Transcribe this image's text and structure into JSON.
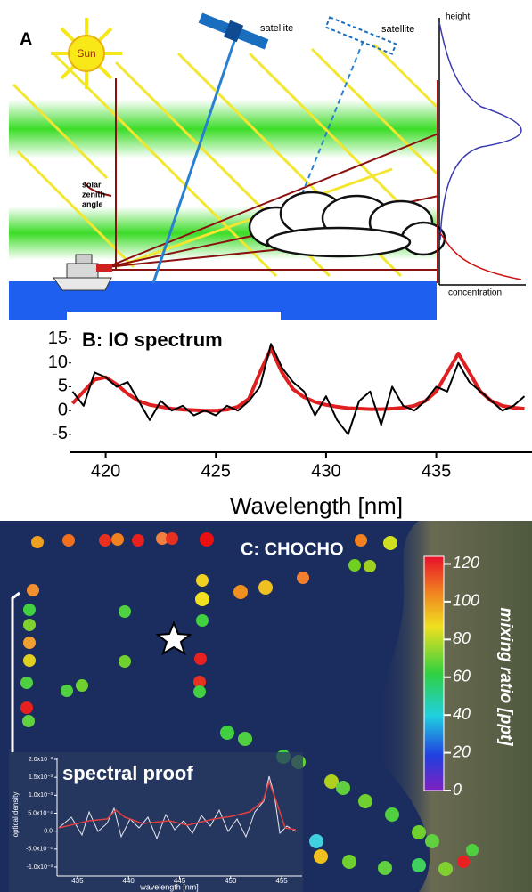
{
  "panel_a": {
    "label": "A",
    "sun": "Sun",
    "satellite_1": "satellite",
    "satellite_2": "satellite",
    "height": "height",
    "solar_zenith_angle": [
      "solar",
      "zenith",
      "angle"
    ],
    "concentration": "concentration"
  },
  "chart_data": {
    "type": "line",
    "title": "B: IO spectrum",
    "x_label": "Wavelength [nm]",
    "x": [
      418.5,
      419,
      419.5,
      420,
      420.5,
      421,
      421.5,
      422,
      422.5,
      423,
      423.5,
      424,
      424.5,
      425,
      425.5,
      426,
      426.5,
      427,
      427.5,
      428,
      428.5,
      429,
      429.5,
      430,
      430.5,
      431,
      431.5,
      432,
      432.5,
      433,
      433.5,
      434,
      434.5,
      435,
      435.5,
      436,
      436.5,
      437,
      437.5,
      438,
      438.5,
      439
    ],
    "series": [
      {
        "color": "#e02020",
        "values": [
          1.5,
          4,
          6.5,
          7,
          5.5,
          3.5,
          2,
          1.2,
          0.8,
          0.4,
          0.2,
          0.1,
          0,
          0,
          0.2,
          0.8,
          2.5,
          8,
          13,
          8,
          4.5,
          2.8,
          1.8,
          1.2,
          0.8,
          0.5,
          0.4,
          0.3,
          0.3,
          0.4,
          0.6,
          1,
          2,
          4,
          8,
          12,
          8,
          4,
          2,
          1,
          0.6,
          0.4
        ]
      },
      {
        "color": "#000000",
        "values": [
          4,
          1,
          8,
          7,
          5,
          6,
          2,
          -2,
          2,
          0,
          1,
          -1,
          0,
          -1,
          1,
          0,
          2,
          5,
          14,
          9,
          6,
          4,
          -1,
          3,
          -2,
          -5,
          2,
          4,
          -3,
          5,
          1,
          0,
          2,
          5,
          4,
          10,
          6,
          4,
          2,
          0,
          1,
          3
        ]
      }
    ],
    "xlim": [
      418.4,
      439.1
    ],
    "ylim": [
      -8,
      16
    ],
    "xticks": [
      420,
      425,
      430,
      435
    ],
    "yticks": [
      15,
      10,
      5,
      0,
      -5
    ]
  },
  "panel_c": {
    "title": "C: CHOCHO",
    "colorbar": {
      "label": "mixing ratio [ppt]",
      "lim": [
        0,
        124
      ],
      "ticks": [
        120,
        100,
        80,
        60,
        40,
        20,
        0
      ]
    },
    "inset": {
      "title": "spectral proof",
      "y_label": "optical density",
      "x_label": "wavelength [nm]",
      "xlim": [
        433,
        457
      ],
      "ylim": [
        -0.00105,
        0.00205
      ],
      "xticks": [
        435,
        440,
        445,
        450,
        455
      ],
      "yticks": [
        {
          "value": 0.002,
          "label": "2.0x10⁻³"
        },
        {
          "value": 0.0015,
          "label": "1.5x10⁻³"
        },
        {
          "value": 0.001,
          "label": "1.0x10⁻³"
        },
        {
          "value": 0.0005,
          "label": "5.0x10⁻⁴"
        },
        {
          "value": 0,
          "label": "0.0"
        },
        {
          "value": -0.0005,
          "label": "-5.0x10⁻⁴"
        },
        {
          "value": -0.001,
          "label": "-1.0x10⁻³"
        }
      ]
    }
  }
}
